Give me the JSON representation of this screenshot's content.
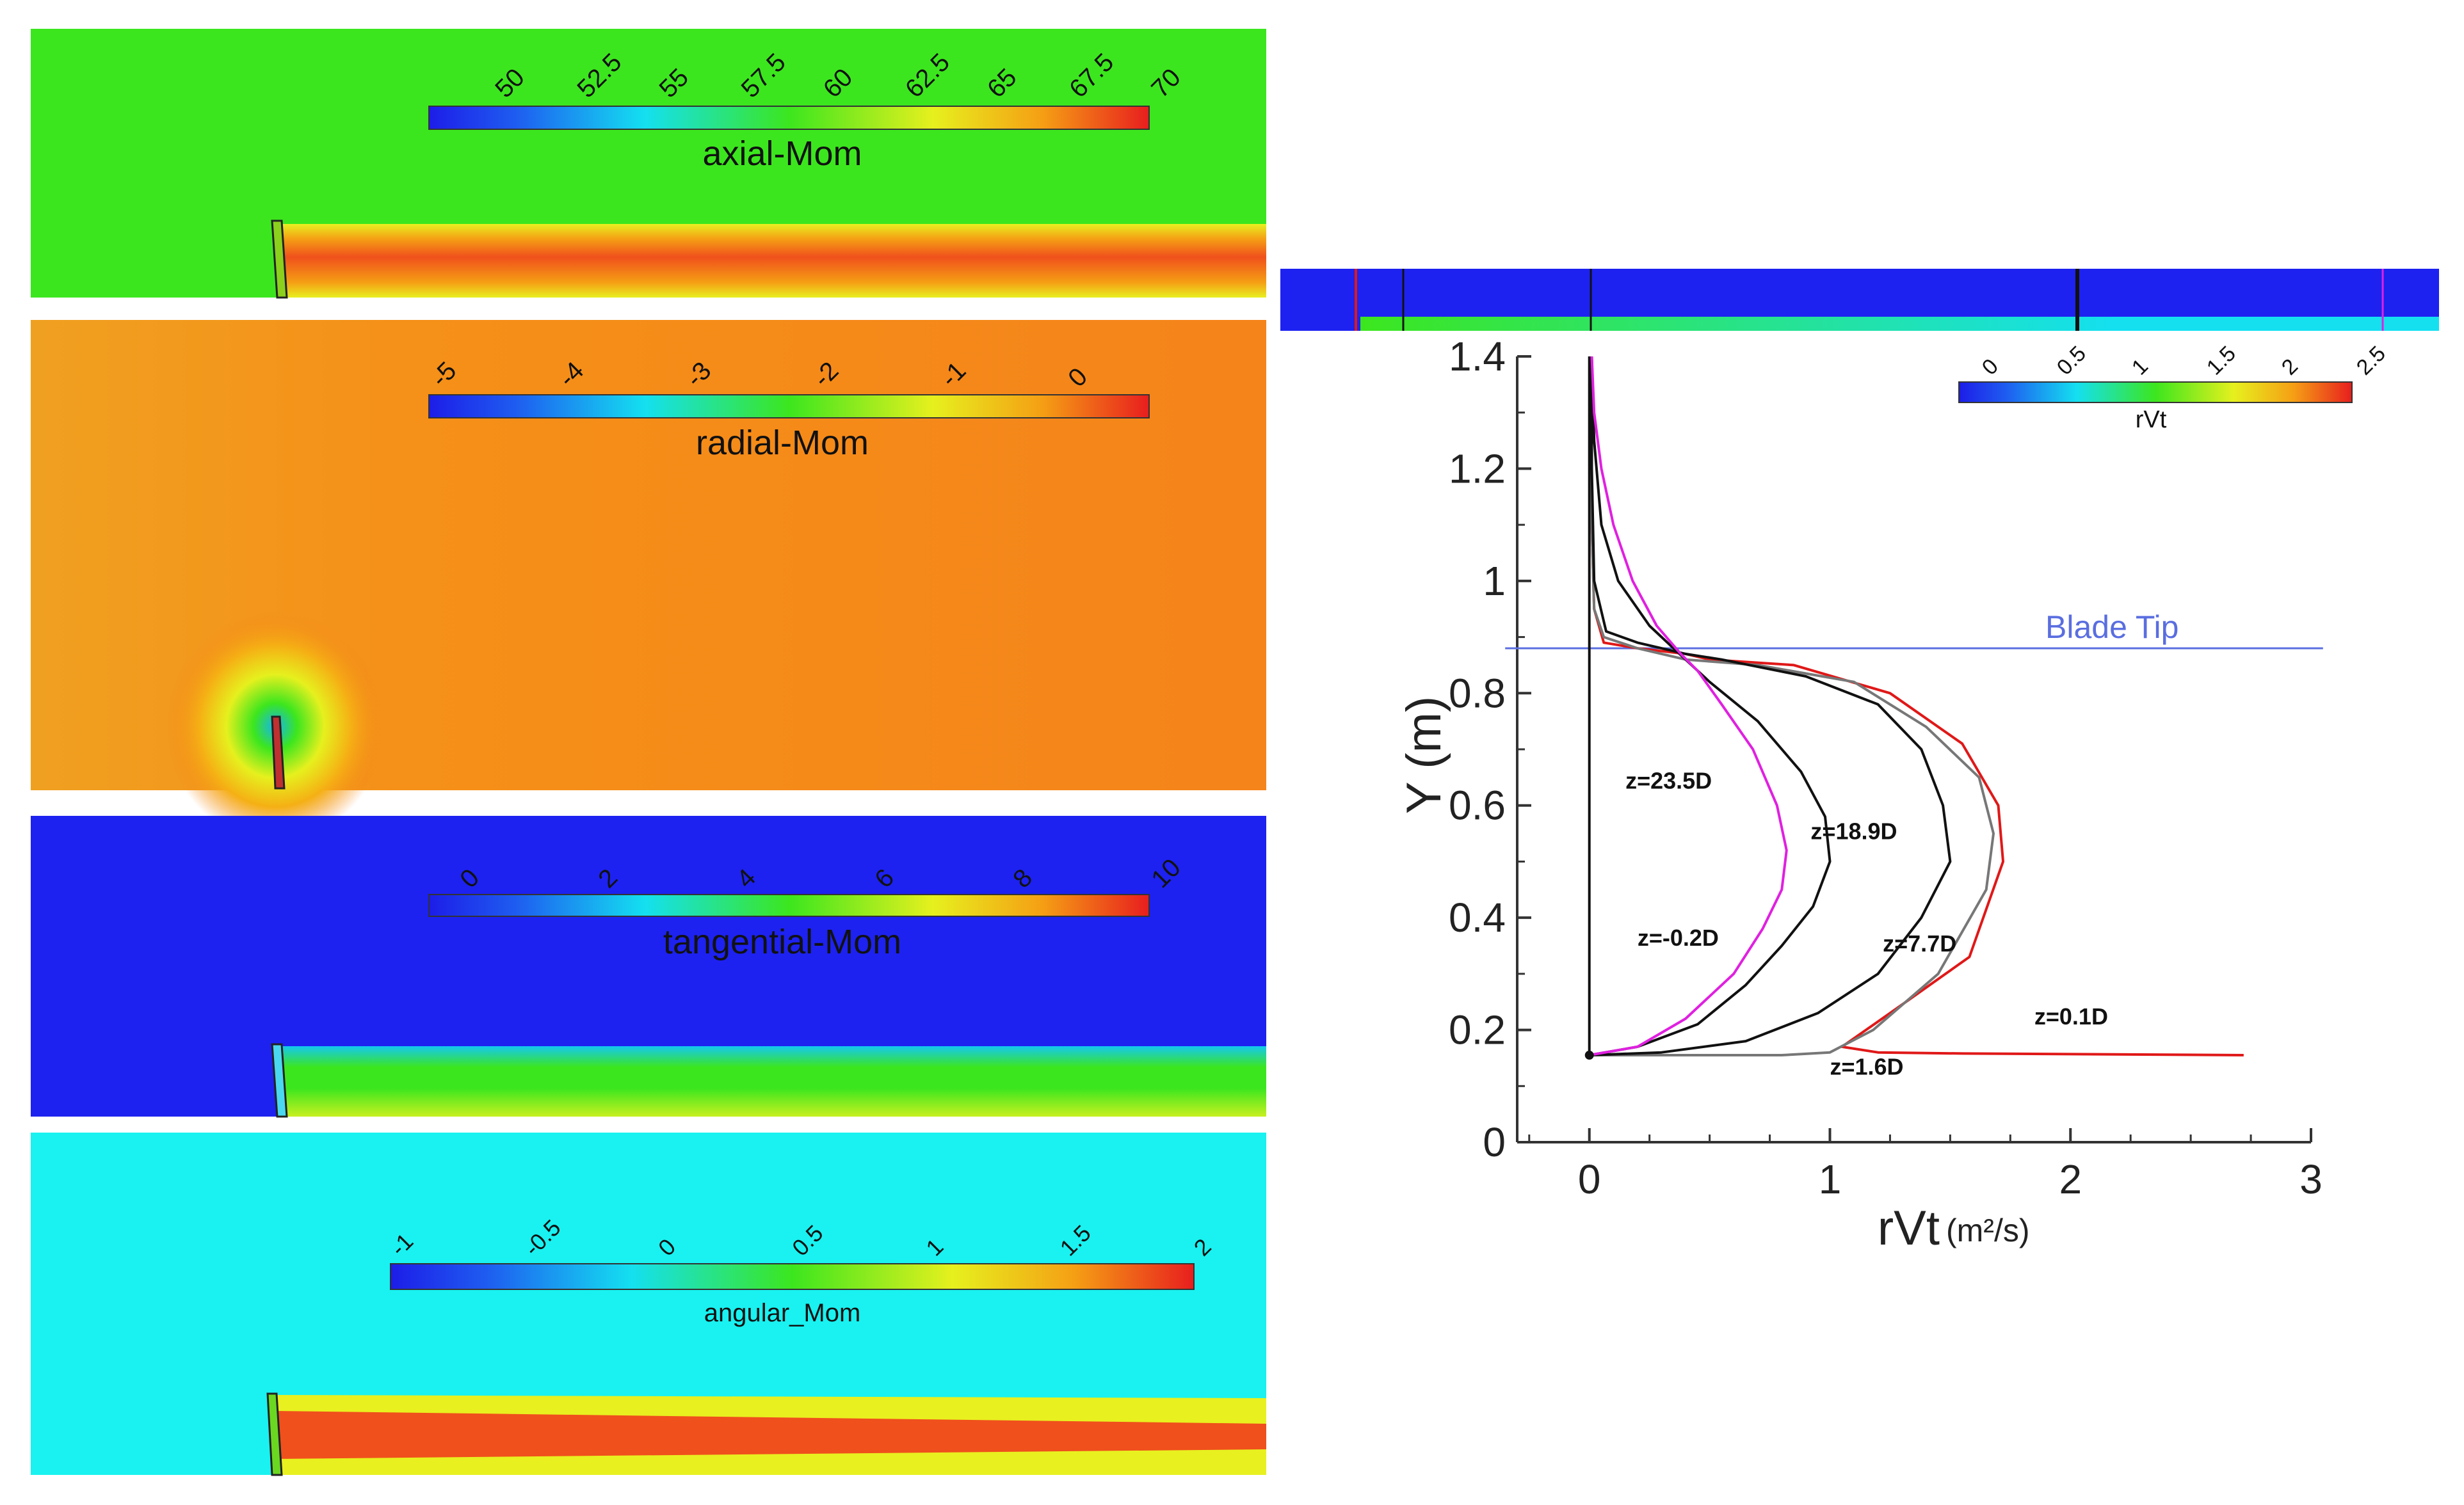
{
  "colors": {
    "axial_bg": "#3ce61e",
    "radial_bg": "#f5841a",
    "tangential_bg": "#1d22f0",
    "angular_bg": "#19f2f0",
    "wake_red": "#f0501c",
    "wake_yellow": "#e8f020",
    "blade_tip_line": "#5a6ee0",
    "curve_black": "#111111",
    "curve_gray": "#777777",
    "curve_red": "#e01818",
    "curve_magenta": "#e020e0"
  },
  "contours": {
    "axial": {
      "title": "axial-Mom",
      "ticks": [
        "50",
        "52.5",
        "55",
        "57.5",
        "60",
        "62.5",
        "65",
        "67.5",
        "70"
      ]
    },
    "radial": {
      "title": "radial-Mom",
      "ticks": [
        "-5",
        "-4",
        "-3",
        "-2",
        "-1",
        "0"
      ]
    },
    "tangential": {
      "title": "tangential-Mom",
      "ticks": [
        "0",
        "2",
        "4",
        "6",
        "8",
        "10"
      ]
    },
    "angular": {
      "title": "angular_Mom",
      "ticks": [
        "-1",
        "-0.5",
        "0",
        "0.5",
        "1",
        "1.5",
        "2"
      ]
    },
    "rvt_strip": {
      "title": "rVt",
      "ticks": [
        "0",
        "0.5",
        "1",
        "1.5",
        "2",
        "2.5"
      ]
    }
  },
  "chart_data": {
    "type": "line",
    "xlabel": "rVt",
    "xlabel_unit": "(m²/s)",
    "ylabel": "Y (m)",
    "xlim": [
      -0.3,
      3
    ],
    "ylim": [
      0,
      1.4
    ],
    "xticks": [
      "0",
      "1",
      "2",
      "3"
    ],
    "yticks": [
      "0",
      "0.2",
      "0.4",
      "0.6",
      "0.8",
      "1",
      "1.2",
      "1.4"
    ],
    "annotation": {
      "text": "Blade Tip",
      "y": 0.88
    },
    "series": [
      {
        "name": "z=-0.2D",
        "color": "curve_black",
        "x": [
          0,
          0,
          0,
          0,
          0,
          0
        ],
        "y": [
          0.16,
          0.4,
          0.7,
          0.88,
          1.1,
          1.4
        ]
      },
      {
        "name": "z=0.1D",
        "color": "curve_red",
        "x": [
          2.72,
          1.55,
          1.2,
          1.05,
          1.25,
          1.58,
          1.72,
          1.7,
          1.55,
          1.25,
          0.85,
          0.5,
          0.4,
          0.2,
          0.06,
          0.02,
          0.01,
          0.01
        ],
        "y": [
          0.155,
          0.158,
          0.16,
          0.17,
          0.23,
          0.33,
          0.5,
          0.6,
          0.71,
          0.8,
          0.85,
          0.86,
          0.87,
          0.88,
          0.89,
          0.95,
          1.1,
          1.4
        ]
      },
      {
        "name": "z=1.6D",
        "color": "curve_gray",
        "x": [
          0,
          0.8,
          1.0,
          1.18,
          1.45,
          1.65,
          1.68,
          1.62,
          1.4,
          1.1,
          0.7,
          0.4,
          0.2,
          0.06,
          0.02,
          0.01,
          0.01
        ],
        "y": [
          0.155,
          0.155,
          0.16,
          0.2,
          0.3,
          0.45,
          0.55,
          0.65,
          0.74,
          0.82,
          0.85,
          0.86,
          0.88,
          0.9,
          0.95,
          1.1,
          1.4
        ]
      },
      {
        "name": "z=7.7D",
        "color": "curve_black",
        "x": [
          0,
          0.3,
          0.65,
          0.95,
          1.2,
          1.38,
          1.5,
          1.47,
          1.38,
          1.2,
          0.9,
          0.55,
          0.4,
          0.2,
          0.07,
          0.02,
          0.01,
          0.01
        ],
        "y": [
          0.155,
          0.16,
          0.18,
          0.23,
          0.3,
          0.4,
          0.5,
          0.6,
          0.7,
          0.78,
          0.83,
          0.86,
          0.87,
          0.89,
          0.91,
          1.0,
          1.2,
          1.4
        ]
      },
      {
        "name": "z=18.9D",
        "color": "curve_black",
        "x": [
          0,
          0.2,
          0.45,
          0.65,
          0.8,
          0.93,
          1.0,
          0.98,
          0.88,
          0.7,
          0.5,
          0.4,
          0.25,
          0.12,
          0.05,
          0.02,
          0.01
        ],
        "y": [
          0.155,
          0.17,
          0.21,
          0.28,
          0.35,
          0.42,
          0.5,
          0.58,
          0.66,
          0.75,
          0.82,
          0.86,
          0.92,
          1.0,
          1.1,
          1.25,
          1.4
        ]
      },
      {
        "name": "z=23.5D",
        "color": "curve_magenta",
        "x": [
          0,
          0.2,
          0.4,
          0.6,
          0.72,
          0.8,
          0.82,
          0.78,
          0.68,
          0.55,
          0.45,
          0.38,
          0.28,
          0.18,
          0.1,
          0.05,
          0.02,
          0.01
        ],
        "y": [
          0.155,
          0.17,
          0.22,
          0.3,
          0.38,
          0.45,
          0.52,
          0.6,
          0.7,
          0.78,
          0.84,
          0.87,
          0.92,
          1.0,
          1.1,
          1.2,
          1.3,
          1.4
        ]
      }
    ],
    "labels": [
      {
        "text": "z=23.5D",
        "x": 0.15,
        "y": 0.63
      },
      {
        "text": "z=18.9D",
        "x": 0.92,
        "y": 0.54
      },
      {
        "text": "z=-0.2D",
        "x": 0.2,
        "y": 0.35
      },
      {
        "text": "z=7.7D",
        "x": 1.22,
        "y": 0.34
      },
      {
        "text": "z=0.1D",
        "x": 1.85,
        "y": 0.21
      },
      {
        "text": "z=1.6D",
        "x": 1.0,
        "y": 0.12
      }
    ]
  }
}
